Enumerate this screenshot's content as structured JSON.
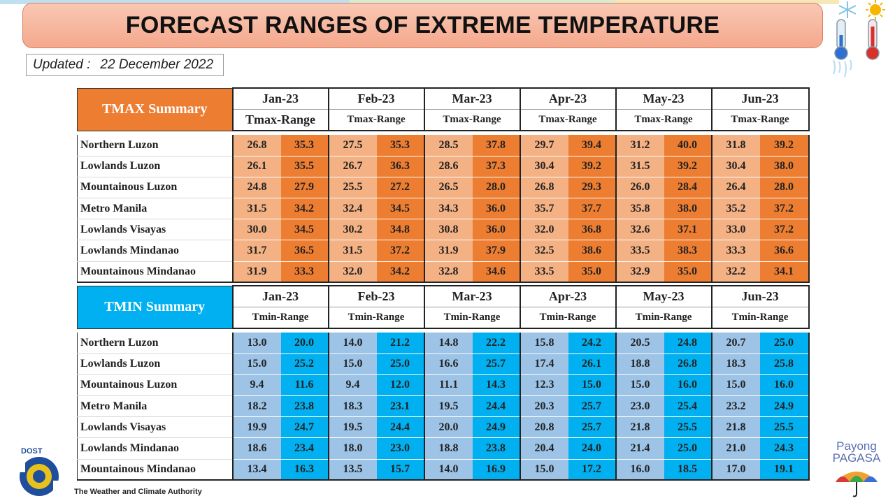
{
  "title": "FORECAST RANGES OF EXTREME TEMPERATURE",
  "updated": {
    "label": "Updated :",
    "date": "22 December 2022"
  },
  "months": [
    "Jan-23",
    "Feb-23",
    "Mar-23",
    "Apr-23",
    "May-23",
    "Jun-23"
  ],
  "tmax": {
    "heading": "TMAX Summary",
    "range_label": "Tmax-Range",
    "colors": {
      "header": "#ed7d31",
      "low": "#f4b183",
      "high": "#ed7d31"
    },
    "rows": [
      {
        "region": "Northern Luzon",
        "values": [
          "26.8",
          "35.3",
          "27.5",
          "35.3",
          "28.5",
          "37.8",
          "29.7",
          "39.4",
          "31.2",
          "40.0",
          "31.8",
          "39.2"
        ]
      },
      {
        "region": "Lowlands Luzon",
        "values": [
          "26.1",
          "35.5",
          "26.7",
          "36.3",
          "28.6",
          "37.3",
          "30.4",
          "39.2",
          "31.5",
          "39.2",
          "30.4",
          "38.0"
        ]
      },
      {
        "region": "Mountainous Luzon",
        "values": [
          "24.8",
          "27.9",
          "25.5",
          "27.2",
          "26.5",
          "28.0",
          "26.8",
          "29.3",
          "26.0",
          "28.4",
          "26.4",
          "28.0"
        ]
      },
      {
        "region": "Metro Manila",
        "values": [
          "31.5",
          "34.2",
          "32.4",
          "34.5",
          "34.3",
          "36.0",
          "35.7",
          "37.7",
          "35.8",
          "38.0",
          "35.2",
          "37.2"
        ]
      },
      {
        "region": "Lowlands Visayas",
        "values": [
          "30.0",
          "34.5",
          "30.2",
          "34.8",
          "30.8",
          "36.0",
          "32.0",
          "36.8",
          "32.6",
          "37.1",
          "33.0",
          "37.2"
        ]
      },
      {
        "region": "Lowlands Mindanao",
        "values": [
          "31.7",
          "36.5",
          "31.5",
          "37.2",
          "31.9",
          "37.9",
          "32.5",
          "38.6",
          "33.5",
          "38.3",
          "33.3",
          "36.6"
        ]
      },
      {
        "region": "Mountainous Mindanao",
        "values": [
          "31.9",
          "33.3",
          "32.0",
          "34.2",
          "32.8",
          "34.6",
          "33.5",
          "35.0",
          "32.9",
          "35.0",
          "32.2",
          "34.1"
        ]
      }
    ]
  },
  "tmin": {
    "heading": "TMIN Summary",
    "range_label": "Tmin-Range",
    "colors": {
      "header": "#00b0f0",
      "low": "#9dc3e6",
      "high": "#00b0f0"
    },
    "rows": [
      {
        "region": "Northern Luzon",
        "values": [
          "13.0",
          "20.0",
          "14.0",
          "21.2",
          "14.8",
          "22.2",
          "15.8",
          "24.2",
          "20.5",
          "24.8",
          "20.7",
          "25.0"
        ]
      },
      {
        "region": "Lowlands Luzon",
        "values": [
          "15.0",
          "25.2",
          "15.0",
          "25.0",
          "16.6",
          "25.7",
          "17.4",
          "26.1",
          "18.8",
          "26.8",
          "18.3",
          "25.8"
        ]
      },
      {
        "region": "Mountainous Luzon",
        "values": [
          "9.4",
          "11.6",
          "9.4",
          "12.0",
          "11.1",
          "14.3",
          "12.3",
          "15.0",
          "15.0",
          "16.0",
          "15.0",
          "16.0"
        ]
      },
      {
        "region": "Metro Manila",
        "values": [
          "18.2",
          "23.8",
          "18.3",
          "23.1",
          "19.5",
          "24.4",
          "20.3",
          "25.7",
          "23.0",
          "25.4",
          "23.2",
          "24.9"
        ]
      },
      {
        "region": "Lowlands Visayas",
        "values": [
          "19.9",
          "24.7",
          "19.5",
          "24.4",
          "20.0",
          "24.9",
          "20.8",
          "25.7",
          "21.8",
          "25.5",
          "21.8",
          "25.5"
        ]
      },
      {
        "region": "Lowlands Mindanao",
        "values": [
          "18.6",
          "23.4",
          "18.0",
          "23.0",
          "18.8",
          "23.8",
          "20.4",
          "24.0",
          "21.4",
          "25.0",
          "21.0",
          "24.3"
        ]
      },
      {
        "region": "Mountainous Mindanao",
        "values": [
          "13.4",
          "16.3",
          "13.5",
          "15.7",
          "14.0",
          "16.9",
          "15.0",
          "17.2",
          "16.0",
          "18.5",
          "17.0",
          "19.1"
        ]
      }
    ]
  },
  "logos": {
    "dost": "DOST",
    "pagasa": "PAGASA",
    "tagline": "The Weather and Climate Authority",
    "payong_line1": "Payong",
    "payong_line2": "PAGASA",
    "icons": [
      "cold-thermometer-icon",
      "hot-thermometer-icon",
      "snowflake-icon",
      "sun-icon",
      "umbrella-icon"
    ]
  }
}
